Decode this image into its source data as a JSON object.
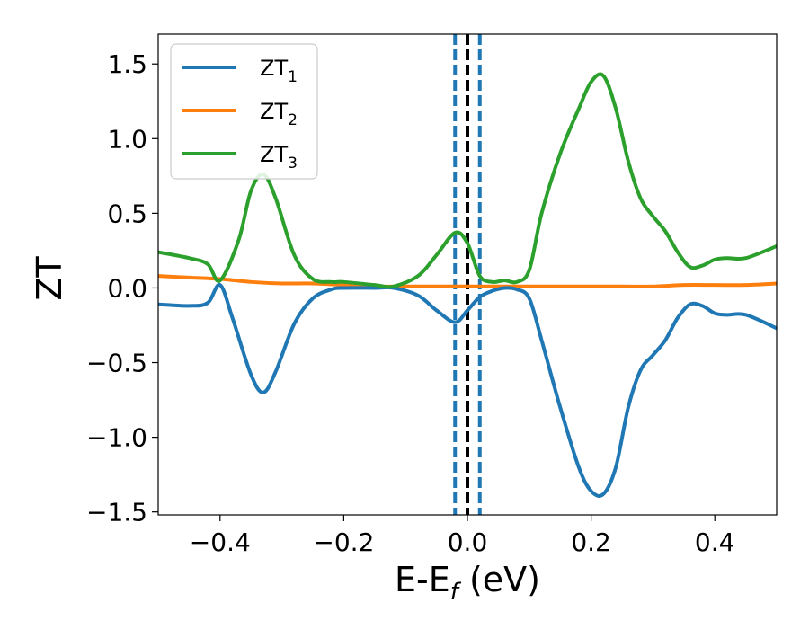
{
  "chart_data": {
    "type": "line",
    "xlabel": {
      "main": "E-E",
      "sub": "f",
      "rest": " (eV)"
    },
    "ylabel": "ZT",
    "xlim": [
      -0.5,
      0.5
    ],
    "ylim": [
      -1.52,
      1.7
    ],
    "xticks": [
      -0.4,
      -0.2,
      0.0,
      0.2,
      0.4
    ],
    "xtick_labels": [
      "−0.4",
      "−0.2",
      "0.0",
      "0.2",
      "0.4"
    ],
    "yticks": [
      -1.5,
      -1.0,
      -0.5,
      0.0,
      0.5,
      1.0,
      1.5
    ],
    "ytick_labels": [
      "−1.5",
      "−1.0",
      "−0.5",
      "0.0",
      "0.5",
      "1.0",
      "1.5"
    ],
    "grid": false,
    "legend": "upper-left",
    "vlines": [
      {
        "x": -0.02,
        "color": "#1f77b4",
        "style": "dashed"
      },
      {
        "x": 0.0,
        "color": "#000000",
        "style": "dashed"
      },
      {
        "x": 0.02,
        "color": "#1f77b4",
        "style": "dashed"
      }
    ],
    "series": [
      {
        "name": "ZT",
        "sub": "1",
        "color": "#1f77b4",
        "x": [
          -0.5,
          -0.45,
          -0.42,
          -0.4,
          -0.38,
          -0.35,
          -0.33,
          -0.31,
          -0.28,
          -0.25,
          -0.22,
          -0.2,
          -0.15,
          -0.12,
          -0.08,
          -0.05,
          -0.02,
          0.0,
          0.02,
          0.04,
          0.06,
          0.08,
          0.1,
          0.12,
          0.15,
          0.18,
          0.2,
          0.22,
          0.24,
          0.26,
          0.28,
          0.3,
          0.32,
          0.34,
          0.36,
          0.38,
          0.4,
          0.42,
          0.45,
          0.5
        ],
        "y": [
          -0.11,
          -0.12,
          -0.1,
          0.02,
          -0.2,
          -0.58,
          -0.7,
          -0.56,
          -0.24,
          -0.07,
          -0.01,
          0.0,
          0.0,
          0.0,
          -0.05,
          -0.15,
          -0.23,
          -0.15,
          -0.06,
          -0.02,
          0.0,
          -0.01,
          -0.07,
          -0.35,
          -0.8,
          -1.2,
          -1.36,
          -1.38,
          -1.2,
          -0.8,
          -0.55,
          -0.45,
          -0.35,
          -0.2,
          -0.11,
          -0.12,
          -0.17,
          -0.18,
          -0.18,
          -0.27
        ]
      },
      {
        "name": "ZT",
        "sub": "2",
        "color": "#ff7f0e",
        "x": [
          -0.5,
          -0.45,
          -0.4,
          -0.35,
          -0.3,
          -0.25,
          -0.2,
          -0.15,
          -0.1,
          -0.05,
          0.0,
          0.05,
          0.1,
          0.15,
          0.2,
          0.25,
          0.3,
          0.35,
          0.4,
          0.45,
          0.5
        ],
        "y": [
          0.08,
          0.07,
          0.06,
          0.04,
          0.03,
          0.03,
          0.02,
          0.01,
          0.01,
          0.01,
          0.01,
          0.01,
          0.01,
          0.01,
          0.01,
          0.01,
          0.01,
          0.02,
          0.02,
          0.02,
          0.03
        ]
      },
      {
        "name": "ZT",
        "sub": "3",
        "color": "#2ca02c",
        "x": [
          -0.5,
          -0.45,
          -0.42,
          -0.4,
          -0.37,
          -0.35,
          -0.33,
          -0.31,
          -0.28,
          -0.25,
          -0.22,
          -0.2,
          -0.15,
          -0.12,
          -0.08,
          -0.05,
          -0.02,
          0.0,
          0.02,
          0.04,
          0.06,
          0.08,
          0.1,
          0.12,
          0.15,
          0.18,
          0.2,
          0.22,
          0.24,
          0.26,
          0.28,
          0.3,
          0.32,
          0.34,
          0.36,
          0.38,
          0.4,
          0.42,
          0.45,
          0.5
        ],
        "y": [
          0.24,
          0.2,
          0.16,
          0.05,
          0.32,
          0.65,
          0.76,
          0.6,
          0.22,
          0.06,
          0.04,
          0.04,
          0.02,
          0.01,
          0.08,
          0.22,
          0.37,
          0.3,
          0.08,
          0.04,
          0.05,
          0.04,
          0.12,
          0.5,
          0.9,
          1.2,
          1.38,
          1.42,
          1.2,
          0.85,
          0.6,
          0.48,
          0.38,
          0.24,
          0.14,
          0.15,
          0.19,
          0.2,
          0.2,
          0.28
        ]
      }
    ]
  }
}
